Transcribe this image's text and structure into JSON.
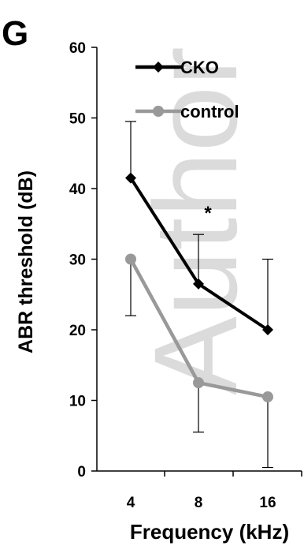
{
  "panel_label": "G",
  "watermark": "Author",
  "chart_data": {
    "type": "line",
    "categories": [
      "4",
      "8",
      "16"
    ],
    "xlabel": "Frequency (kHz)",
    "ylabel": "ABR threshold (dB)",
    "ylim": [
      0,
      60
    ],
    "yticks": [
      "0",
      "10",
      "20",
      "30",
      "40",
      "50",
      "60"
    ],
    "legend_position": "top-left",
    "grid": false,
    "series": [
      {
        "name": "CKO",
        "color": "#000000",
        "marker": "diamond",
        "values": [
          41.5,
          26.5,
          20
        ],
        "error_upper": [
          8,
          7,
          10
        ],
        "error_lower": [
          0,
          0,
          0
        ]
      },
      {
        "name": "control",
        "color": "#999999",
        "marker": "circle",
        "values": [
          30,
          12.5,
          10.5
        ],
        "error_upper": [
          0,
          0,
          0
        ],
        "error_lower": [
          8,
          7,
          10
        ]
      }
    ],
    "annotations": [
      {
        "text": "*",
        "category_index": 1,
        "y": 37
      }
    ]
  }
}
